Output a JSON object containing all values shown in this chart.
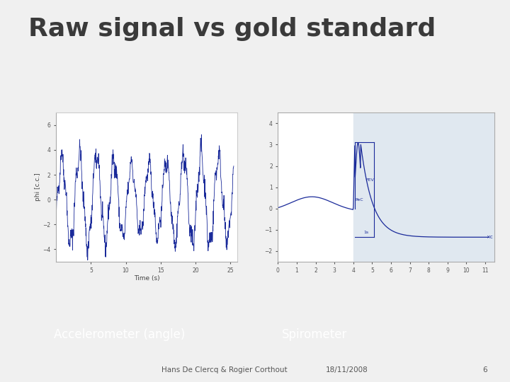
{
  "title": "Raw signal vs gold standard",
  "title_fontsize": 26,
  "title_color": "#3a3a3a",
  "title_fontweight": "bold",
  "bg_color": "#f0f0f0",
  "label_left": "Accelerometer (angle)",
  "label_right": "Spirometer",
  "label_color": "#ffffff",
  "label_bg_color": "#3aabba",
  "footer_text": "Hans De Clercq & Rogier Corthout",
  "footer_date": "18/11/2008",
  "footer_page": "6",
  "line_color": "#1a2a9a",
  "accel_ylabel": "phi [c.c.]",
  "accel_xlabel": "Time (s)",
  "accel_xlim": [
    0,
    26
  ],
  "accel_ylim": [
    -5,
    7
  ],
  "spiro_xlim": [
    0,
    11.5
  ],
  "spiro_ylim": [
    -2.5,
    4.5
  ],
  "spiro_bg_left": "#ffffff",
  "spiro_bg_right": "#e0e8f0"
}
